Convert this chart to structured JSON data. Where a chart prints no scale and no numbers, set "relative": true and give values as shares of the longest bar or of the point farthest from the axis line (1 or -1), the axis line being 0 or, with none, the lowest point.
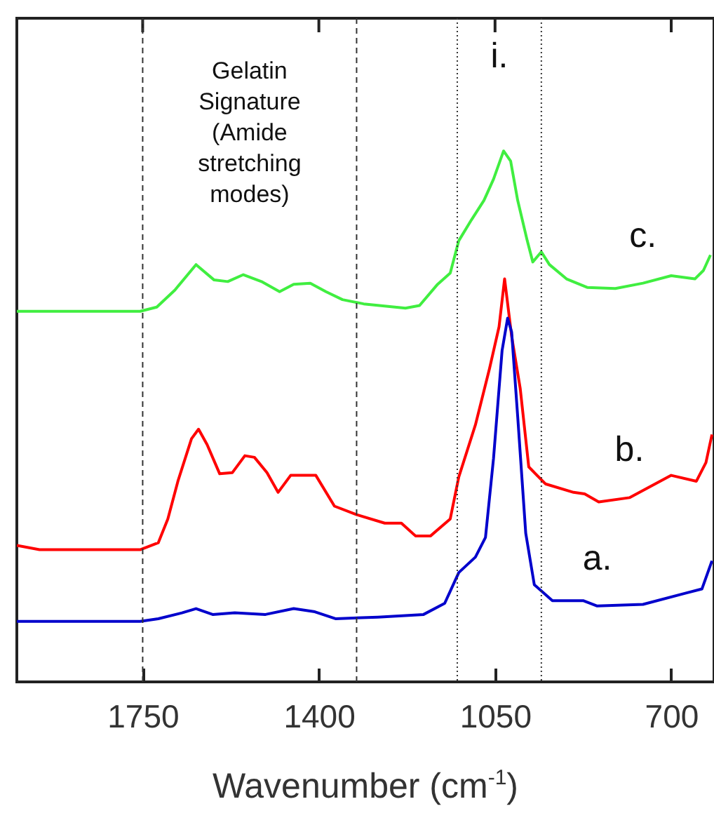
{
  "chart_data": {
    "type": "line",
    "relative": true,
    "xlabel": "Wavenumber (cm$^{-1}$)",
    "xlim": [
      2000,
      615
    ],
    "xticks": [
      1750,
      1400,
      1050,
      700
    ],
    "x": [
      2000,
      1755,
      1722,
      1686,
      1644,
      1608,
      1581,
      1550,
      1514,
      1478,
      1450,
      1417,
      1386,
      1353,
      1311,
      1228,
      1200,
      1164,
      1139,
      1122,
      1097,
      1072,
      1053,
      1033,
      1019,
      1005,
      986,
      975,
      958,
      942,
      908,
      867,
      811,
      756,
      700,
      653,
      636,
      622
    ],
    "series": [
      {
        "name": "c.",
        "color": "#40ee40",
        "values": [
          0.698,
          0.698,
          0.706,
          0.738,
          0.786,
          0.757,
          0.754,
          0.767,
          0.754,
          0.735,
          0.749,
          0.751,
          0.735,
          0.72,
          0.712,
          0.704,
          0.709,
          0.749,
          0.77,
          0.831,
          0.87,
          0.907,
          0.947,
          1.0,
          0.981,
          0.907,
          0.831,
          0.791,
          0.81,
          0.786,
          0.759,
          0.743,
          0.741,
          0.751,
          0.765,
          0.759,
          0.775,
          0.804
        ]
      },
      {
        "name": "b.",
        "color": "#ff0000",
        "x": [
          2000,
          1955,
          1755,
          1719,
          1700,
          1680,
          1653,
          1639,
          1622,
          1597,
          1572,
          1547,
          1528,
          1503,
          1481,
          1456,
          1406,
          1369,
          1325,
          1269,
          1236,
          1208,
          1178,
          1139,
          1122,
          1089,
          1061,
          1042,
          1031,
          1017,
          1000,
          983,
          950,
          894,
          872,
          844,
          783,
          700,
          650,
          631,
          619
        ],
        "values": [
          0.257,
          0.249,
          0.249,
          0.262,
          0.307,
          0.378,
          0.458,
          0.476,
          0.447,
          0.392,
          0.394,
          0.426,
          0.423,
          0.394,
          0.357,
          0.389,
          0.389,
          0.331,
          0.315,
          0.299,
          0.299,
          0.275,
          0.275,
          0.307,
          0.386,
          0.484,
          0.59,
          0.669,
          0.759,
          0.651,
          0.553,
          0.405,
          0.373,
          0.357,
          0.354,
          0.339,
          0.347,
          0.389,
          0.378,
          0.413,
          0.466
        ]
      },
      {
        "name": "a.",
        "color": "#0000cc",
        "x": [
          2000,
          1755,
          1719,
          1672,
          1644,
          1611,
          1567,
          1506,
          1450,
          1408,
          1367,
          1283,
          1192,
          1150,
          1122,
          1089,
          1069,
          1053,
          1036,
          1025,
          1017,
          1005,
          989,
          972,
          936,
          875,
          847,
          756,
          672,
          639,
          619
        ],
        "values": [
          0.114,
          0.114,
          0.119,
          0.13,
          0.138,
          0.127,
          0.13,
          0.127,
          0.138,
          0.132,
          0.119,
          0.122,
          0.127,
          0.148,
          0.206,
          0.235,
          0.272,
          0.421,
          0.624,
          0.685,
          0.659,
          0.5,
          0.28,
          0.183,
          0.153,
          0.153,
          0.143,
          0.146,
          0.167,
          0.175,
          0.228
        ]
      }
    ],
    "ref_lines": [
      {
        "axis": "x",
        "value": 1750,
        "line_style": "dashed"
      },
      {
        "axis": "x",
        "value": 1325,
        "line_style": "dashed"
      },
      {
        "axis": "x",
        "value": 1125,
        "line_style": "dotted"
      },
      {
        "axis": "x",
        "value": 958,
        "line_style": "dotted"
      }
    ],
    "annotations": [
      "Gelatin Signature (Amide stretching modes)",
      "i."
    ]
  }
}
